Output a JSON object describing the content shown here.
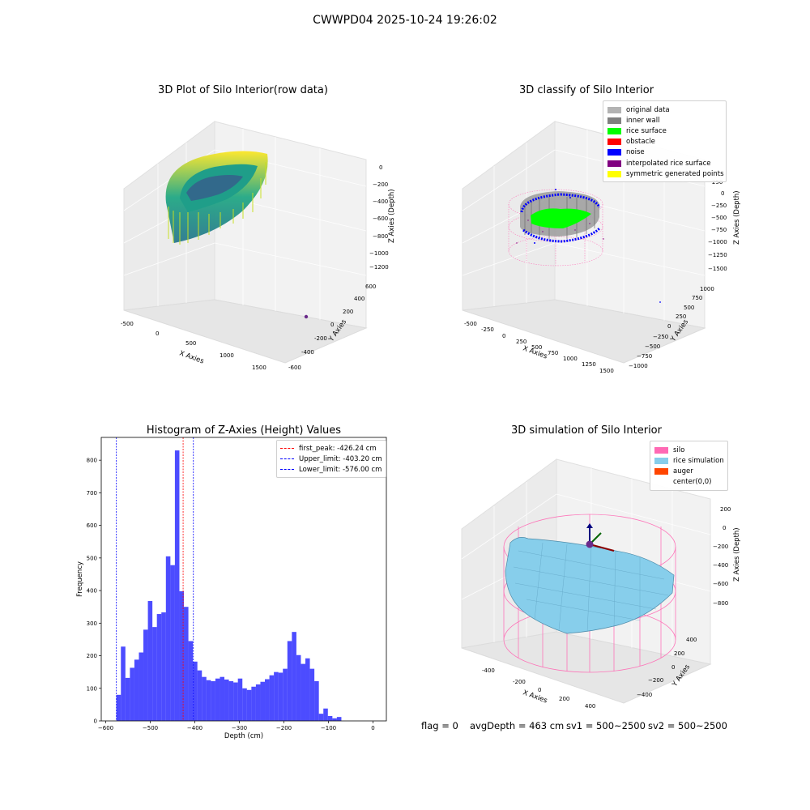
{
  "suptitle": "CWWPD04 2025-10-24 19:26:02",
  "panel_raw": {
    "title": "3D Plot of Silo Interior(row data)",
    "x_label": "X Axies",
    "y_label": "Y Axies",
    "z_label": "Z Axies (Depth)",
    "x_ticks": [
      "-500",
      "0",
      "500",
      "1000",
      "1500"
    ],
    "y_ticks": [
      "-600",
      "-400",
      "-200",
      "0",
      "200",
      "400",
      "600"
    ],
    "z_ticks": [
      "0",
      "−200",
      "−400",
      "−600",
      "−800",
      "−1000",
      "−1200"
    ],
    "colormap": "viridis"
  },
  "panel_classify": {
    "title": "3D classify of Silo Interior",
    "x_label": "X Axies",
    "y_label": "Y Axies",
    "z_label": "Z Axies (Depth)",
    "x_ticks": [
      "-500",
      "-250",
      "0",
      "250",
      "500",
      "750",
      "1000",
      "1250",
      "1500"
    ],
    "y_ticks": [
      "−1000",
      "−750",
      "−500",
      "−250",
      "0",
      "250",
      "500",
      "750",
      "1000"
    ],
    "z_ticks": [
      "250",
      "0",
      "−250",
      "−500",
      "−750",
      "−1000",
      "−1250",
      "−1500"
    ],
    "legend": [
      {
        "label": "original data",
        "color": "#b3b3b3"
      },
      {
        "label": "inner wall",
        "color": "#808080"
      },
      {
        "label": "rice surface",
        "color": "#00ff00"
      },
      {
        "label": "obstacle",
        "color": "#ff0000"
      },
      {
        "label": "noise",
        "color": "#0000ff"
      },
      {
        "label": "interpolated rice surface",
        "color": "#800080"
      },
      {
        "label": "symmetric generated points",
        "color": "#ffff00"
      }
    ]
  },
  "panel_sim": {
    "title": "3D simulation of Silo Interior",
    "x_label": "X Axies",
    "y_label": "Y Axies",
    "z_label": "Z Axies (Depth)",
    "x_ticks": [
      "-400",
      "-200",
      "0",
      "200",
      "400"
    ],
    "y_ticks": [
      "−400",
      "−200",
      "0",
      "200",
      "400"
    ],
    "z_ticks": [
      "200",
      "0",
      "−200",
      "−400",
      "−600",
      "−800"
    ],
    "legend": [
      {
        "label": "silo",
        "color": "#ff69b4"
      },
      {
        "label": "rice simulation",
        "color": "#87ceeb"
      },
      {
        "label": "auger",
        "color": "#ff4500"
      },
      {
        "label": "center(0,0)",
        "color": ""
      }
    ]
  },
  "footer": {
    "flag": "flag = 0",
    "avg_depth": "avgDepth = 463 cm",
    "sv1": "sv1 = 500~2500",
    "sv2": "sv2 = 500~2500"
  },
  "chart_data": {
    "type": "bar",
    "title": "Histogram of Z-Axies (Height) Values",
    "xlabel": "Depth (cm)",
    "ylabel": "Frequency",
    "xlim": [
      -610,
      30
    ],
    "ylim": [
      0,
      870
    ],
    "x_ticks": [
      -600,
      -500,
      -400,
      -300,
      -200,
      -100,
      0
    ],
    "y_ticks": [
      0,
      100,
      200,
      300,
      400,
      500,
      600,
      700,
      800
    ],
    "bar_color": "#0000ff",
    "bin_start": -576,
    "bin_width": 10.1,
    "values": [
      80,
      228,
      132,
      163,
      188,
      210,
      280,
      368,
      288,
      328,
      333,
      505,
      478,
      830,
      398,
      350,
      245,
      182,
      155,
      135,
      125,
      122,
      130,
      135,
      127,
      122,
      118,
      130,
      100,
      95,
      105,
      112,
      120,
      128,
      140,
      150,
      148,
      160,
      245,
      273,
      202,
      175,
      192,
      160,
      122,
      22,
      38,
      15,
      8,
      12
    ],
    "vlines": [
      {
        "label": "first_peak: -426.24 cm",
        "x": -426.24,
        "color": "#ff0000"
      },
      {
        "label": "Upper_limit: -403.20 cm",
        "x": -403.2,
        "color": "#0000ff"
      },
      {
        "label": "Lower_limit: -576.00 cm",
        "x": -576.0,
        "color": "#0000ff"
      }
    ],
    "legend_position": "upper right"
  }
}
